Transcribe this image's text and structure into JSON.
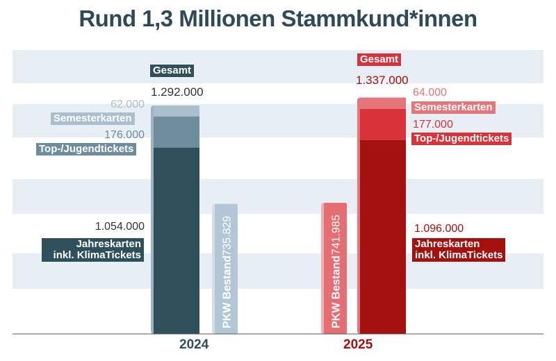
{
  "title": "Rund 1,3 Millionen Stammkund*innen",
  "colors": {
    "stripe": "#e7eef4",
    "dark2024": "#2f4f5a",
    "mid2024": "#6d8d9c",
    "light2024": "#a9bfcd",
    "pkw2024": "#b2c6d6",
    "dark2025": "#a4120f",
    "mid2025": "#d8323a",
    "light2025": "#e5767b",
    "pkw2025": "#e56e72"
  },
  "chart_data": {
    "type": "bar",
    "title": "Rund 1,3 Millionen Stammkund*innen",
    "categories": [
      "2024",
      "2025"
    ],
    "stacked_series": [
      {
        "name": "Jahreskarten inkl. KlimaTickets",
        "values": [
          1054000,
          1096000
        ],
        "labels": [
          "1.054.000",
          "1.096.000"
        ]
      },
      {
        "name": "Top-/Jugendtickets",
        "values": [
          176000,
          177000
        ],
        "labels": [
          "176.000",
          "177.000"
        ]
      },
      {
        "name": "Semesterkarten",
        "values": [
          62000,
          64000
        ],
        "labels": [
          "62.000",
          "64.000"
        ]
      }
    ],
    "totals": {
      "name": "Gesamt",
      "values": [
        1292000,
        1337000
      ],
      "labels": [
        "1.292.000",
        "1.337.000"
      ]
    },
    "comparison": {
      "name": "PKW Bestand",
      "values": [
        735829,
        741985
      ],
      "labels": [
        "735.829",
        "741.985"
      ]
    },
    "ylim": [
      0,
      1400000
    ]
  },
  "labels": {
    "gesamt": "Gesamt",
    "total_2024": "1.292.000",
    "total_2025": "1.337.000",
    "semester": "Semesterkarten",
    "semester_2024": "62.000",
    "semester_2025": "64.000",
    "top": "Top-/Jugendtickets",
    "top_2024": "176.000",
    "top_2025": "177.000",
    "jahres_line1": "Jahreskarten",
    "jahres_line2": "inkl. KlimaTickets",
    "jahres_2024": "1.054.000",
    "jahres_2025": "1.096.000",
    "pkw": "PKW Bestand",
    "pkw_2024": "735.829",
    "pkw_2025": "741.985",
    "year_2024": "2024",
    "year_2025": "2025"
  }
}
